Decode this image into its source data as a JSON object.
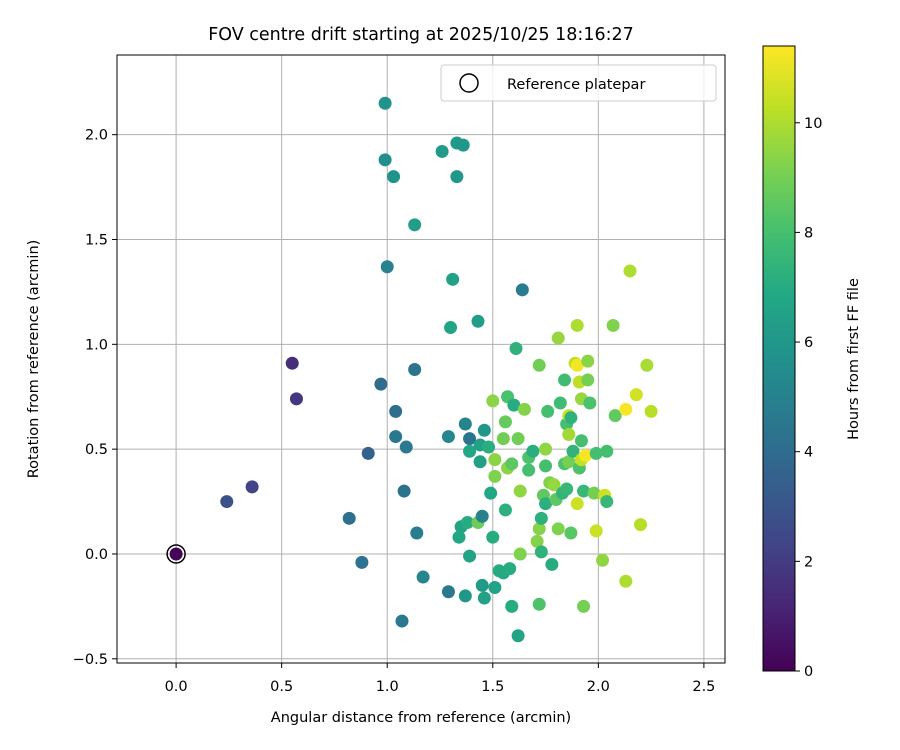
{
  "chart_data": {
    "type": "scatter",
    "title": "FOV centre drift starting at 2025/10/25 18:16:27",
    "xlabel": "Angular distance from reference (arcmin)",
    "ylabel": "Rotation from reference (arcmin)",
    "xlim": [
      -0.28,
      2.6
    ],
    "ylim": [
      -0.52,
      2.38
    ],
    "xticks": [
      0.0,
      0.5,
      1.0,
      1.5,
      2.0,
      2.5
    ],
    "xtick_labels": [
      "0.0",
      "0.5",
      "1.0",
      "1.5",
      "2.0",
      "2.5"
    ],
    "yticks": [
      -0.5,
      0.0,
      0.5,
      1.0,
      1.5,
      2.0
    ],
    "ytick_labels": [
      "−0.5",
      "0.0",
      "0.5",
      "1.0",
      "1.5",
      "2.0"
    ],
    "grid": true,
    "legend": {
      "position": "top-right",
      "entries": [
        "Reference platepar"
      ]
    },
    "reference_point": {
      "x": 0.0,
      "y": 0.0
    },
    "colorbar": {
      "label": "Hours from first FF file",
      "range": [
        0,
        11.4
      ],
      "ticks": [
        0,
        2,
        4,
        6,
        8,
        10
      ],
      "tick_labels": [
        "0",
        "2",
        "4",
        "6",
        "8",
        "10"
      ],
      "colormap": "viridis"
    },
    "points": [
      {
        "x": 0.0,
        "y": 0.0,
        "c": 0.1
      },
      {
        "x": 0.24,
        "y": 0.25,
        "c": 2.8
      },
      {
        "x": 0.36,
        "y": 0.32,
        "c": 2.3
      },
      {
        "x": 0.55,
        "y": 0.91,
        "c": 1.5
      },
      {
        "x": 0.57,
        "y": 0.74,
        "c": 1.8
      },
      {
        "x": 0.82,
        "y": 0.17,
        "c": 4.2
      },
      {
        "x": 0.88,
        "y": -0.04,
        "c": 4.3
      },
      {
        "x": 0.91,
        "y": 0.48,
        "c": 3.6
      },
      {
        "x": 0.97,
        "y": 0.81,
        "c": 4.0
      },
      {
        "x": 0.99,
        "y": 2.15,
        "c": 5.8
      },
      {
        "x": 0.99,
        "y": 1.88,
        "c": 5.6
      },
      {
        "x": 1.0,
        "y": 1.37,
        "c": 5.0
      },
      {
        "x": 1.03,
        "y": 1.8,
        "c": 5.8
      },
      {
        "x": 1.04,
        "y": 0.68,
        "c": 4.1
      },
      {
        "x": 1.04,
        "y": 0.56,
        "c": 4.5
      },
      {
        "x": 1.07,
        "y": -0.32,
        "c": 4.6
      },
      {
        "x": 1.08,
        "y": 0.3,
        "c": 4.4
      },
      {
        "x": 1.09,
        "y": 0.51,
        "c": 4.6
      },
      {
        "x": 1.13,
        "y": 1.57,
        "c": 6.3
      },
      {
        "x": 1.13,
        "y": 0.88,
        "c": 4.3
      },
      {
        "x": 1.14,
        "y": 0.1,
        "c": 4.8
      },
      {
        "x": 1.17,
        "y": -0.11,
        "c": 5.2
      },
      {
        "x": 1.26,
        "y": 1.92,
        "c": 6.2
      },
      {
        "x": 1.29,
        "y": 0.56,
        "c": 5.2
      },
      {
        "x": 1.29,
        "y": -0.18,
        "c": 4.5
      },
      {
        "x": 1.3,
        "y": 1.08,
        "c": 6.7
      },
      {
        "x": 1.31,
        "y": 1.31,
        "c": 6.5
      },
      {
        "x": 1.33,
        "y": 1.96,
        "c": 6.2
      },
      {
        "x": 1.33,
        "y": 1.8,
        "c": 6.0
      },
      {
        "x": 1.34,
        "y": 0.08,
        "c": 6.8
      },
      {
        "x": 1.35,
        "y": 0.13,
        "c": 6.6
      },
      {
        "x": 1.36,
        "y": 1.95,
        "c": 6.0
      },
      {
        "x": 1.37,
        "y": 0.62,
        "c": 5.1
      },
      {
        "x": 1.37,
        "y": -0.2,
        "c": 6.0
      },
      {
        "x": 1.38,
        "y": 0.15,
        "c": 7.0
      },
      {
        "x": 1.39,
        "y": 0.55,
        "c": 4.4
      },
      {
        "x": 1.39,
        "y": 0.49,
        "c": 6.8
      },
      {
        "x": 1.39,
        "y": -0.01,
        "c": 6.6
      },
      {
        "x": 1.43,
        "y": 0.15,
        "c": 8.8
      },
      {
        "x": 1.43,
        "y": 1.11,
        "c": 6.3
      },
      {
        "x": 1.44,
        "y": 0.52,
        "c": 6.5
      },
      {
        "x": 1.44,
        "y": 0.44,
        "c": 6.4
      },
      {
        "x": 1.45,
        "y": 0.18,
        "c": 5.0
      },
      {
        "x": 1.45,
        "y": -0.15,
        "c": 6.2
      },
      {
        "x": 1.46,
        "y": 0.59,
        "c": 6.0
      },
      {
        "x": 1.46,
        "y": -0.21,
        "c": 6.5
      },
      {
        "x": 1.48,
        "y": 0.51,
        "c": 7.1
      },
      {
        "x": 1.49,
        "y": 0.29,
        "c": 6.8
      },
      {
        "x": 1.5,
        "y": 0.73,
        "c": 9.4
      },
      {
        "x": 1.5,
        "y": 0.08,
        "c": 7.0
      },
      {
        "x": 1.51,
        "y": 0.45,
        "c": 9.4
      },
      {
        "x": 1.51,
        "y": 0.37,
        "c": 9.2
      },
      {
        "x": 1.51,
        "y": -0.16,
        "c": 6.6
      },
      {
        "x": 1.53,
        "y": -0.08,
        "c": 7.0
      },
      {
        "x": 1.55,
        "y": -0.09,
        "c": 6.9
      },
      {
        "x": 1.55,
        "y": 0.55,
        "c": 8.9
      },
      {
        "x": 1.56,
        "y": 0.63,
        "c": 8.7
      },
      {
        "x": 1.56,
        "y": 0.21,
        "c": 7.2
      },
      {
        "x": 1.57,
        "y": 0.41,
        "c": 9.4
      },
      {
        "x": 1.57,
        "y": 0.75,
        "c": 8.1
      },
      {
        "x": 1.58,
        "y": -0.07,
        "c": 7.0
      },
      {
        "x": 1.59,
        "y": 0.43,
        "c": 8.5
      },
      {
        "x": 1.59,
        "y": -0.25,
        "c": 7.0
      },
      {
        "x": 1.6,
        "y": 0.71,
        "c": 7.0
      },
      {
        "x": 1.61,
        "y": 0.98,
        "c": 7.3
      },
      {
        "x": 1.62,
        "y": -0.39,
        "c": 6.6
      },
      {
        "x": 1.62,
        "y": 0.55,
        "c": 8.9
      },
      {
        "x": 1.63,
        "y": 0.3,
        "c": 9.5
      },
      {
        "x": 1.63,
        "y": 0.0,
        "c": 9.2
      },
      {
        "x": 1.64,
        "y": 1.26,
        "c": 4.7
      },
      {
        "x": 1.65,
        "y": 0.69,
        "c": 9.3
      },
      {
        "x": 1.67,
        "y": 0.46,
        "c": 8.2
      },
      {
        "x": 1.67,
        "y": 0.4,
        "c": 8.0
      },
      {
        "x": 1.69,
        "y": 0.49,
        "c": 7.1
      },
      {
        "x": 1.71,
        "y": 0.06,
        "c": 9.3
      },
      {
        "x": 1.72,
        "y": 0.12,
        "c": 9.3
      },
      {
        "x": 1.72,
        "y": -0.24,
        "c": 8.2
      },
      {
        "x": 1.72,
        "y": 0.9,
        "c": 8.9
      },
      {
        "x": 1.73,
        "y": 0.17,
        "c": 7.2
      },
      {
        "x": 1.73,
        "y": 0.01,
        "c": 7.3
      },
      {
        "x": 1.74,
        "y": 0.28,
        "c": 8.6
      },
      {
        "x": 1.75,
        "y": 0.42,
        "c": 8.0
      },
      {
        "x": 1.75,
        "y": 0.24,
        "c": 7.2
      },
      {
        "x": 1.75,
        "y": 0.5,
        "c": 9.5
      },
      {
        "x": 1.76,
        "y": 0.68,
        "c": 8.0
      },
      {
        "x": 1.77,
        "y": 0.34,
        "c": 9.2
      },
      {
        "x": 1.78,
        "y": -0.05,
        "c": 7.0
      },
      {
        "x": 1.79,
        "y": 0.33,
        "c": 9.6
      },
      {
        "x": 1.8,
        "y": 0.26,
        "c": 8.5
      },
      {
        "x": 1.81,
        "y": 0.12,
        "c": 9.2
      },
      {
        "x": 1.81,
        "y": 1.03,
        "c": 9.6
      },
      {
        "x": 1.82,
        "y": 0.72,
        "c": 7.8
      },
      {
        "x": 1.83,
        "y": 0.29,
        "c": 7.4
      },
      {
        "x": 1.84,
        "y": 0.83,
        "c": 7.8
      },
      {
        "x": 1.84,
        "y": 0.43,
        "c": 8.2
      },
      {
        "x": 1.85,
        "y": 0.62,
        "c": 8.0
      },
      {
        "x": 1.85,
        "y": 0.31,
        "c": 7.6
      },
      {
        "x": 1.86,
        "y": 0.66,
        "c": 10.5
      },
      {
        "x": 1.86,
        "y": 0.44,
        "c": 9.0
      },
      {
        "x": 1.86,
        "y": 0.57,
        "c": 9.8
      },
      {
        "x": 1.87,
        "y": 0.1,
        "c": 8.4
      },
      {
        "x": 1.87,
        "y": 0.65,
        "c": 7.3
      },
      {
        "x": 1.88,
        "y": 0.49,
        "c": 7.4
      },
      {
        "x": 1.89,
        "y": 0.91,
        "c": 10.3
      },
      {
        "x": 1.9,
        "y": 0.9,
        "c": 11.2
      },
      {
        "x": 1.9,
        "y": 0.24,
        "c": 10.5
      },
      {
        "x": 1.9,
        "y": 1.09,
        "c": 10.0
      },
      {
        "x": 1.91,
        "y": 0.82,
        "c": 10.3
      },
      {
        "x": 1.91,
        "y": 0.41,
        "c": 8.2
      },
      {
        "x": 1.92,
        "y": 0.45,
        "c": 10.4
      },
      {
        "x": 1.92,
        "y": 0.54,
        "c": 8.0
      },
      {
        "x": 1.92,
        "y": 0.74,
        "c": 9.6
      },
      {
        "x": 1.93,
        "y": 0.3,
        "c": 7.6
      },
      {
        "x": 1.93,
        "y": -0.25,
        "c": 9.0
      },
      {
        "x": 1.94,
        "y": 0.47,
        "c": 11.3
      },
      {
        "x": 1.95,
        "y": 0.92,
        "c": 9.4
      },
      {
        "x": 1.95,
        "y": 0.83,
        "c": 9.0
      },
      {
        "x": 1.96,
        "y": 0.72,
        "c": 8.1
      },
      {
        "x": 1.98,
        "y": 0.29,
        "c": 9.0
      },
      {
        "x": 1.99,
        "y": 0.11,
        "c": 10.5
      },
      {
        "x": 1.99,
        "y": 0.48,
        "c": 8.0
      },
      {
        "x": 2.02,
        "y": -0.03,
        "c": 9.5
      },
      {
        "x": 2.03,
        "y": 0.28,
        "c": 10.5
      },
      {
        "x": 2.04,
        "y": 0.25,
        "c": 7.6
      },
      {
        "x": 2.04,
        "y": 0.49,
        "c": 8.0
      },
      {
        "x": 2.07,
        "y": 1.09,
        "c": 9.2
      },
      {
        "x": 2.08,
        "y": 0.66,
        "c": 8.6
      },
      {
        "x": 2.13,
        "y": -0.13,
        "c": 10.0
      },
      {
        "x": 2.13,
        "y": 0.69,
        "c": 11.3
      },
      {
        "x": 2.15,
        "y": 1.35,
        "c": 10.0
      },
      {
        "x": 2.18,
        "y": 0.76,
        "c": 10.6
      },
      {
        "x": 2.2,
        "y": 0.14,
        "c": 10.2
      },
      {
        "x": 2.23,
        "y": 0.9,
        "c": 9.9
      },
      {
        "x": 2.25,
        "y": 0.68,
        "c": 10.2
      }
    ]
  }
}
